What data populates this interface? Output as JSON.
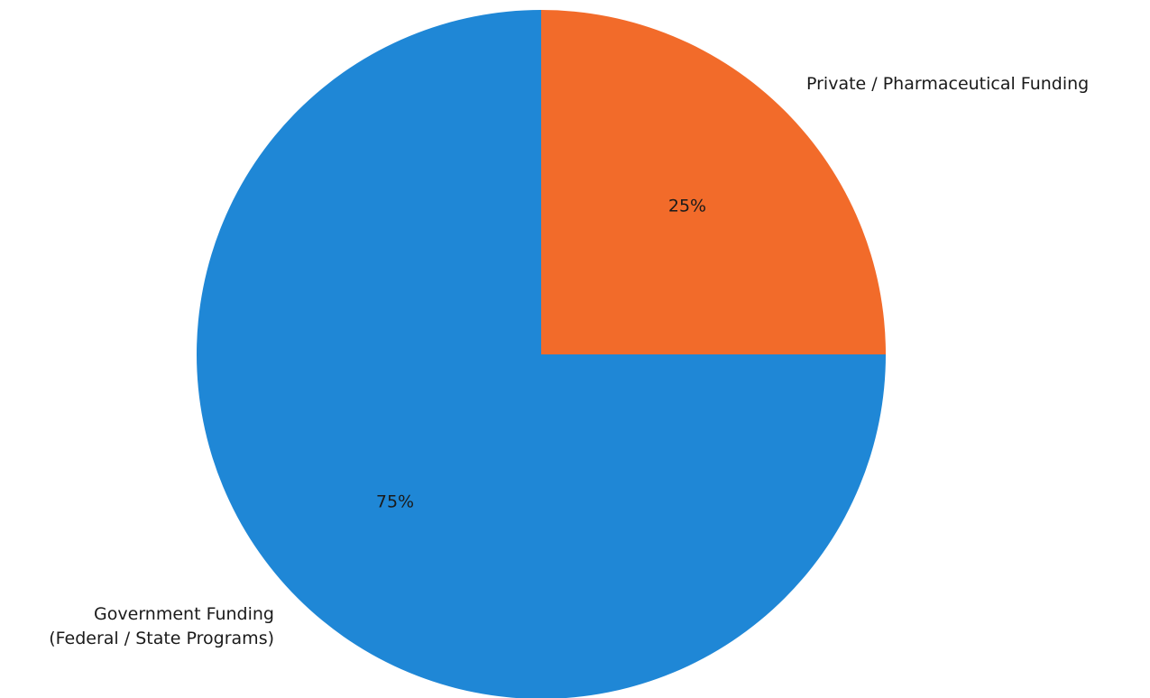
{
  "chart_data": {
    "type": "pie",
    "title": "",
    "categories": [
      "Private / Pharmaceutical Funding",
      "Government Funding (Federal / State Programs)"
    ],
    "slices": [
      {
        "label_lines": [
          "Private / Pharmaceutical Funding"
        ],
        "value": 25,
        "pct_label": "25%",
        "color": "#f26b2a"
      },
      {
        "label_lines": [
          "Government Funding",
          "(Federal / State Programs)"
        ],
        "value": 75,
        "pct_label": "75%",
        "color": "#1f87d6"
      }
    ],
    "start_angle_deg": 90,
    "direction": "clockwise",
    "legend": "none"
  }
}
